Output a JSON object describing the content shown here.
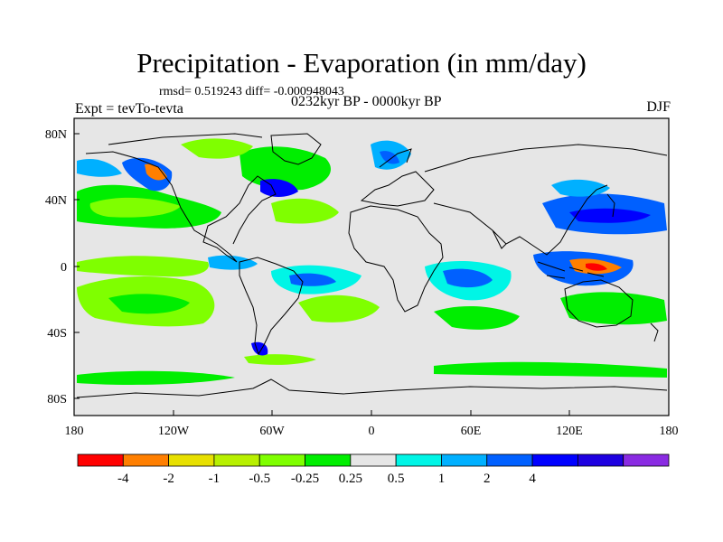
{
  "title": "Precipitation - Evaporation (in mm/day)",
  "stats": "rmsd= 0.519243  diff= -0.000948043",
  "period": "0232kyr BP - 0000kyr BP",
  "experiment": "Expt = tevTo-tevta",
  "season": "DJF",
  "latitude_ticks": [
    "80N",
    "40N",
    "0",
    "40S",
    "80S"
  ],
  "longitude_ticks": [
    "180",
    "120W",
    "60W",
    "0",
    "60E",
    "120E",
    "180"
  ],
  "colorbar": {
    "colors": [
      "#ff0000",
      "#ff7f00",
      "#e8e000",
      "#b8f000",
      "#7fff00",
      "#00ee00",
      "#e6e6e6",
      "#00f5e6",
      "#00b0ff",
      "#0060ff",
      "#0000ff",
      "#1e00e0",
      "#8a2be2"
    ],
    "labels": [
      "-4",
      "-2",
      "-1",
      "-0.5",
      "-0.25",
      "0.25",
      "0.5",
      "1",
      "2",
      "4"
    ]
  }
}
